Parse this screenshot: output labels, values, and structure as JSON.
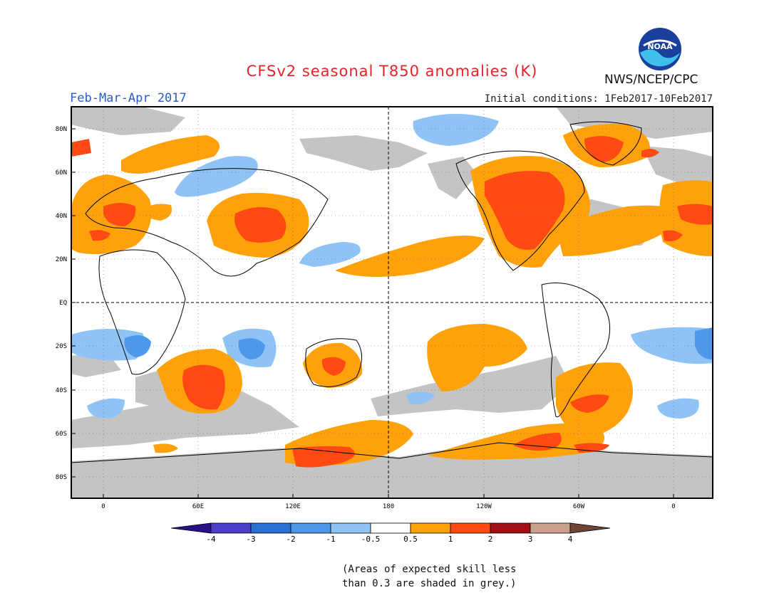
{
  "header": {
    "title": "CFSv2 seasonal T850 anomalies (K)",
    "period": "Feb-Mar-Apr 2017",
    "initial_conditions": "Initial conditions: 1Feb2017-10Feb2017",
    "agency": "NWS/NCEP/CPC",
    "logo_text": "NOAA"
  },
  "map": {
    "lat_labels": [
      "80N",
      "60N",
      "40N",
      "20N",
      "EQ",
      "20S",
      "40S",
      "60S",
      "80S"
    ],
    "lon_labels": [
      "0",
      "60E",
      "120E",
      "180",
      "120W",
      "60W",
      "0"
    ],
    "skill_shading_color": "#c4c4c4"
  },
  "legend": {
    "tick_labels": [
      "-4",
      "-3",
      "-2",
      "-1",
      "-0.5",
      "0.5",
      "1",
      "2",
      "3",
      "4"
    ],
    "colors": [
      "#2a0f8a",
      "#4c3fc9",
      "#2a6fd4",
      "#4d98ea",
      "#8fc3f5",
      "#ffffff",
      "#ffa10a",
      "#ff4a14",
      "#a30f12",
      "#caa08e",
      "#6e4535"
    ],
    "note_line1": "(Areas of expected skill less",
    "note_line2": "than 0.3 are shaded in grey.)"
  }
}
